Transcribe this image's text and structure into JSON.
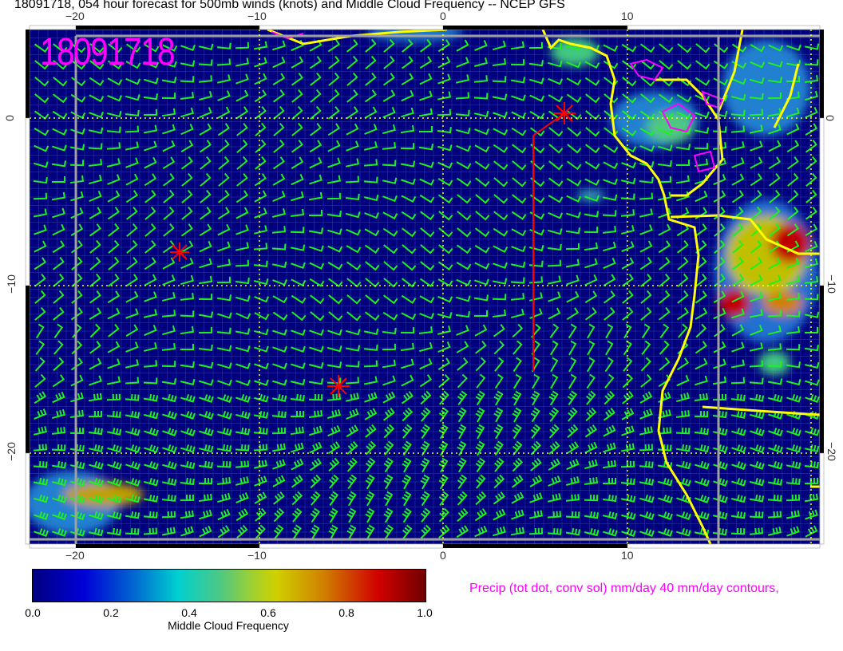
{
  "title": "18091718, 054 hour forecast for 500mb winds (knots) and Middle Cloud Frequency -- NCEP GFS",
  "stamp": "18091718",
  "map": {
    "lon_labels": [
      "−20",
      "−10",
      "0",
      "10"
    ],
    "lat_labels": [
      "0",
      "−10",
      "−20"
    ],
    "extent": {
      "lon": [
        -22.5,
        20.5
      ],
      "lat": [
        5.3,
        -25.4
      ]
    },
    "colors": {
      "ocean_background": "#00007f",
      "wind_barbs": "#00ff00",
      "coastline": "#ffff00",
      "precip_contours": "#ff00ff",
      "markers": "#ff0000"
    }
  },
  "colorbar": {
    "ticks": [
      "0.0",
      "0.2",
      "0.4",
      "0.6",
      "0.8",
      "1.0"
    ],
    "label": "Middle Cloud Frequency"
  },
  "precip_label": "Precip (tot dot, conv sol) mm/day 40 mm/day contours,"
}
